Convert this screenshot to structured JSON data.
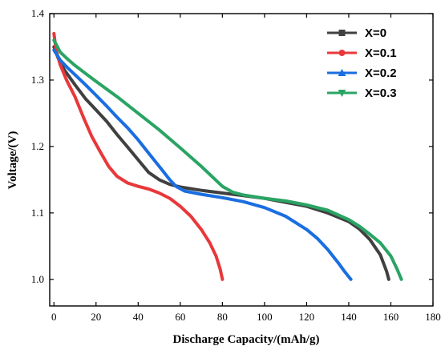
{
  "chart_data": {
    "type": "line",
    "title": "",
    "xlabel": "Discharge Capacity/(mAh/g)",
    "ylabel": "Voltage/(V)",
    "xlim": [
      -2,
      180
    ],
    "ylim": [
      0.96,
      1.4
    ],
    "x_ticks": [
      0,
      20,
      40,
      60,
      80,
      100,
      120,
      140,
      160,
      180
    ],
    "y_ticks": [
      1.0,
      1.1,
      1.2,
      1.3,
      1.4
    ],
    "grid": false,
    "legend_position": "top-right",
    "series": [
      {
        "name": "X=0",
        "color": "#404040",
        "marker": "square",
        "x": [
          0,
          2,
          5,
          10,
          15,
          20,
          25,
          30,
          35,
          40,
          45,
          50,
          55,
          60,
          70,
          80,
          90,
          100,
          110,
          120,
          130,
          140,
          145,
          150,
          155,
          158,
          159
        ],
        "y": [
          1.35,
          1.333,
          1.315,
          1.293,
          1.272,
          1.255,
          1.238,
          1.218,
          1.199,
          1.18,
          1.161,
          1.15,
          1.143,
          1.139,
          1.134,
          1.13,
          1.126,
          1.122,
          1.116,
          1.11,
          1.1,
          1.087,
          1.076,
          1.06,
          1.037,
          1.012,
          1.0
        ]
      },
      {
        "name": "X=0.1",
        "color": "#e8383b",
        "marker": "circle",
        "x": [
          0,
          1,
          3,
          6,
          10,
          14,
          18,
          22,
          26,
          30,
          35,
          40,
          45,
          50,
          55,
          60,
          65,
          70,
          74,
          77,
          79,
          80
        ],
        "y": [
          1.37,
          1.345,
          1.323,
          1.3,
          1.275,
          1.244,
          1.215,
          1.192,
          1.17,
          1.155,
          1.145,
          1.14,
          1.136,
          1.13,
          1.122,
          1.11,
          1.095,
          1.075,
          1.055,
          1.035,
          1.015,
          1.0
        ]
      },
      {
        "name": "X=0.2",
        "color": "#1a6ee0",
        "marker": "triangle",
        "x": [
          0,
          3,
          6,
          10,
          15,
          20,
          25,
          30,
          35,
          40,
          45,
          50,
          55,
          58,
          62,
          70,
          80,
          90,
          100,
          110,
          120,
          125,
          130,
          135,
          138,
          140,
          141
        ],
        "y": [
          1.345,
          1.33,
          1.32,
          1.308,
          1.293,
          1.277,
          1.261,
          1.244,
          1.228,
          1.21,
          1.19,
          1.17,
          1.15,
          1.14,
          1.133,
          1.128,
          1.123,
          1.117,
          1.108,
          1.095,
          1.075,
          1.062,
          1.045,
          1.025,
          1.012,
          1.004,
          1.0
        ]
      },
      {
        "name": "X=0.3",
        "color": "#2aa464",
        "marker": "triangle-down",
        "x": [
          0,
          3,
          6,
          10,
          15,
          20,
          30,
          40,
          50,
          60,
          70,
          75,
          80,
          85,
          90,
          100,
          110,
          120,
          130,
          140,
          145,
          150,
          155,
          160,
          163,
          165
        ],
        "y": [
          1.36,
          1.342,
          1.333,
          1.322,
          1.31,
          1.298,
          1.275,
          1.25,
          1.225,
          1.198,
          1.17,
          1.155,
          1.14,
          1.131,
          1.127,
          1.122,
          1.118,
          1.112,
          1.104,
          1.09,
          1.08,
          1.068,
          1.055,
          1.035,
          1.015,
          1.0
        ]
      }
    ]
  }
}
